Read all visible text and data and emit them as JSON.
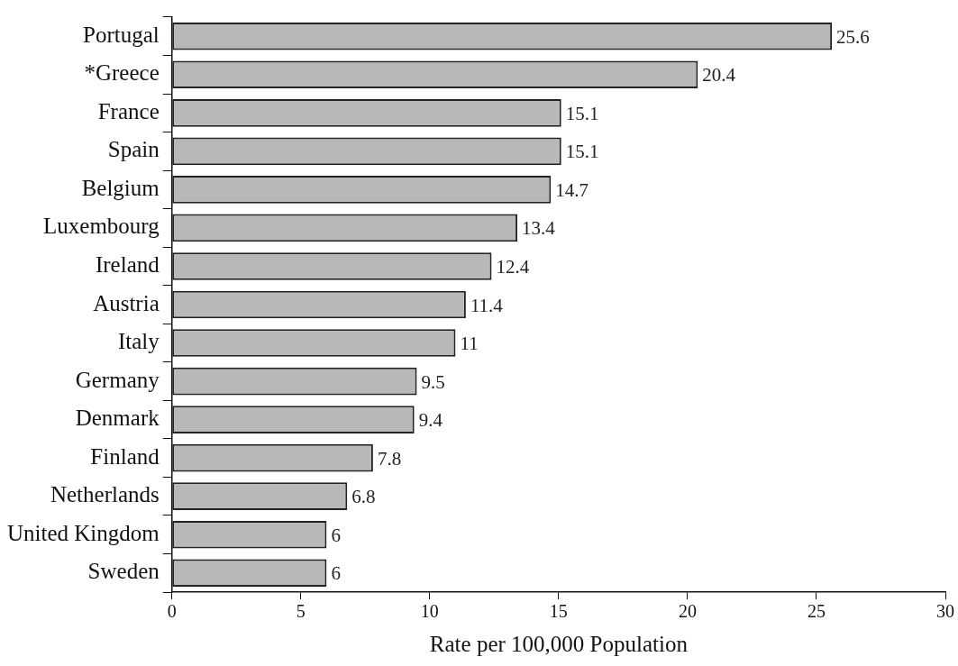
{
  "chart_data": {
    "type": "bar",
    "orientation": "horizontal",
    "xlabel": "Rate per 100,000 Population",
    "categories": [
      "Portugal",
      "*Greece",
      "France",
      "Spain",
      "Belgium",
      "Luxembourg",
      "Ireland",
      "Austria",
      "Italy",
      "Germany",
      "Denmark",
      "Finland",
      "Netherlands",
      "United Kingdom",
      "Sweden"
    ],
    "values": [
      25.6,
      20.4,
      15.1,
      15.1,
      14.7,
      13.4,
      12.4,
      11.4,
      11,
      9.5,
      9.4,
      7.8,
      6.8,
      6,
      6
    ],
    "color": "#b8b8b8",
    "xlim": [
      0,
      30
    ],
    "xticks": [
      0,
      5,
      10,
      15,
      20,
      25,
      30
    ],
    "data_labels": true,
    "grid": false,
    "legend": false
  }
}
